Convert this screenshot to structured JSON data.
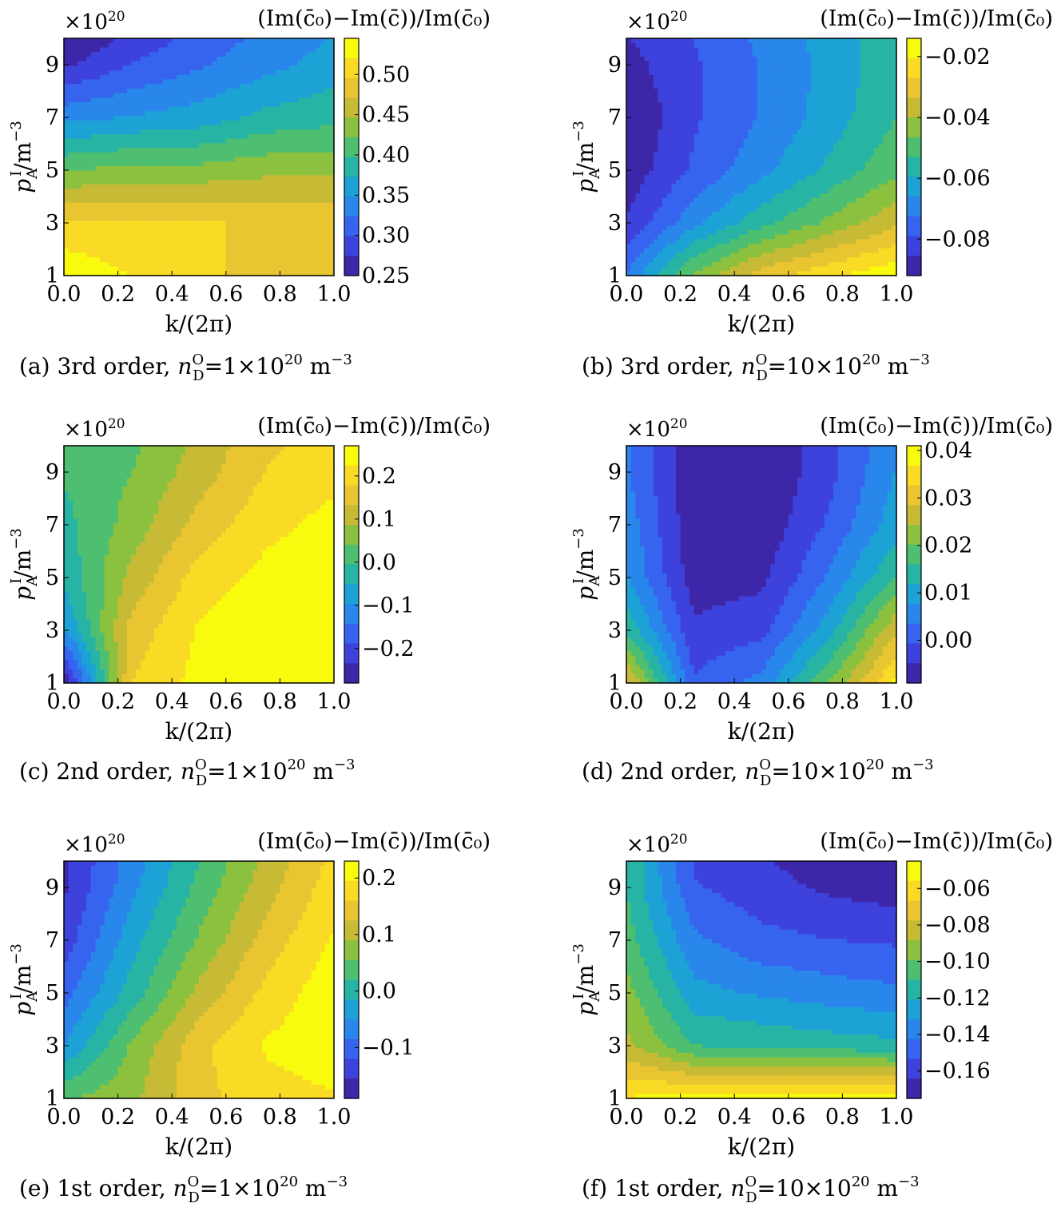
{
  "figure": {
    "colormap": [
      "#3e26a8",
      "#3e4cef",
      "#2c80f0",
      "#1aa5d2",
      "#2ebc8b",
      "#85c240",
      "#d6ba34",
      "#f9ce2e",
      "#f9fb0e"
    ],
    "contour_line_color": "#000000"
  },
  "chart_data": [
    {
      "type": "heatmap",
      "panel": "a",
      "title": "(Im(c̄₀)−Im(c̄))/Im(c̄₀)",
      "caption": {
        "prefix": "(a) 3rd order, ",
        "var": "n",
        "var_sup": "O",
        "var_sub": "D",
        "rest": "=1×10",
        "exp": "20",
        "unit": " m",
        "unit_exp": "−3"
      },
      "xlabel": "k/(2π)",
      "ylabel": {
        "main": "p",
        "sub": "A",
        "sup": "I",
        "rest": "/m",
        "rest_exp": "−3"
      },
      "y_multiplier": {
        "base": "×10",
        "exp": "20"
      },
      "x": [
        0.0,
        0.25,
        0.5,
        0.75,
        1.0
      ],
      "y": [
        1,
        3,
        5,
        7,
        9,
        10
      ],
      "z": [
        [
          0.54,
          0.52,
          0.5,
          0.49,
          0.48
        ],
        [
          0.5,
          0.5,
          0.5,
          0.49,
          0.49
        ],
        [
          0.42,
          0.43,
          0.43,
          0.44,
          0.44
        ],
        [
          0.34,
          0.35,
          0.36,
          0.38,
          0.39
        ],
        [
          0.27,
          0.3,
          0.32,
          0.34,
          0.36
        ],
        [
          0.25,
          0.28,
          0.31,
          0.33,
          0.35
        ]
      ],
      "clim": [
        0.25,
        0.545
      ],
      "xlim": [
        0.0,
        1.0
      ],
      "ylim": [
        1,
        10
      ],
      "xticks": [
        "0.0",
        "0.2",
        "0.4",
        "0.6",
        "0.8",
        "1.0"
      ],
      "yticks": [
        "1",
        "3",
        "5",
        "7",
        "9"
      ],
      "colorbar_ticks": [
        {
          "label": "0.50",
          "value": 0.5
        },
        {
          "label": "0.45",
          "value": 0.45
        },
        {
          "label": "0.40",
          "value": 0.4
        },
        {
          "label": "0.35",
          "value": 0.35
        },
        {
          "label": "0.30",
          "value": 0.3
        },
        {
          "label": "0.25",
          "value": 0.25
        }
      ],
      "levels": 12
    },
    {
      "type": "heatmap",
      "panel": "b",
      "title": "(Im(c̄₀)−Im(c̄))/Im(c̄₀)",
      "caption": {
        "prefix": "(b) 3rd order, ",
        "var": "n",
        "var_sup": "O",
        "var_sub": "D",
        "rest": "=10×10",
        "exp": "20",
        "unit": " m",
        "unit_exp": "−3"
      },
      "xlabel": "k/(2π)",
      "ylabel": {
        "main": "p",
        "sub": "A",
        "sup": "I",
        "rest": "/m",
        "rest_exp": "−3"
      },
      "y_multiplier": {
        "base": "×10",
        "exp": "20"
      },
      "x": [
        0.0,
        0.25,
        0.5,
        0.75,
        1.0
      ],
      "y": [
        1,
        3,
        5,
        7,
        9,
        10
      ],
      "z": [
        [
          -0.072,
          -0.045,
          -0.03,
          -0.022,
          -0.015
        ],
        [
          -0.085,
          -0.068,
          -0.055,
          -0.045,
          -0.035
        ],
        [
          -0.09,
          -0.078,
          -0.068,
          -0.058,
          -0.048
        ],
        [
          -0.092,
          -0.08,
          -0.072,
          -0.063,
          -0.053
        ],
        [
          -0.088,
          -0.08,
          -0.072,
          -0.064,
          -0.055
        ],
        [
          -0.086,
          -0.079,
          -0.071,
          -0.063,
          -0.055
        ]
      ],
      "clim": [
        -0.092,
        -0.014
      ],
      "xlim": [
        0.0,
        1.0
      ],
      "ylim": [
        1,
        10
      ],
      "xticks": [
        "0.0",
        "0.2",
        "0.4",
        "0.6",
        "0.8",
        "1.0"
      ],
      "yticks": [
        "1",
        "3",
        "5",
        "7",
        "9"
      ],
      "colorbar_ticks": [
        {
          "label": "−0.02",
          "value": -0.02
        },
        {
          "label": "−0.04",
          "value": -0.04
        },
        {
          "label": "−0.06",
          "value": -0.06
        },
        {
          "label": "−0.08",
          "value": -0.08
        }
      ],
      "levels": 12
    },
    {
      "type": "heatmap",
      "panel": "c",
      "title": "(Im(c̄₀)−Im(c̄))/Im(c̄₀)",
      "caption": {
        "prefix": "(c) 2nd order, ",
        "var": "n",
        "var_sup": "O",
        "var_sub": "D",
        "rest": "=1×10",
        "exp": "20",
        "unit": " m",
        "unit_exp": "−3"
      },
      "xlabel": "k/(2π)",
      "ylabel": {
        "main": "p",
        "sub": "A",
        "sup": "I",
        "rest": "/m",
        "rest_exp": "−3"
      },
      "y_multiplier": {
        "base": "×10",
        "exp": "20"
      },
      "x": [
        0.0,
        0.25,
        0.5,
        0.75,
        1.0
      ],
      "y": [
        1,
        3,
        5,
        7,
        9,
        10
      ],
      "z": [
        [
          -0.28,
          0.18,
          0.24,
          0.26,
          0.26
        ],
        [
          -0.1,
          0.15,
          0.23,
          0.26,
          0.26
        ],
        [
          -0.04,
          0.1,
          0.2,
          0.24,
          0.26
        ],
        [
          -0.02,
          0.06,
          0.15,
          0.21,
          0.24
        ],
        [
          0.0,
          0.04,
          0.11,
          0.18,
          0.21
        ],
        [
          0.0,
          0.03,
          0.1,
          0.17,
          0.2
        ]
      ],
      "clim": [
        -0.28,
        0.27
      ],
      "xlim": [
        0.0,
        1.0
      ],
      "ylim": [
        1,
        10
      ],
      "xticks": [
        "0.0",
        "0.2",
        "0.4",
        "0.6",
        "0.8",
        "1.0"
      ],
      "yticks": [
        "1",
        "3",
        "5",
        "7",
        "9"
      ],
      "colorbar_ticks": [
        {
          "label": "0.2",
          "value": 0.2
        },
        {
          "label": "0.1",
          "value": 0.1
        },
        {
          "label": "0.0",
          "value": 0.0
        },
        {
          "label": "−0.1",
          "value": -0.1
        },
        {
          "label": "−0.2",
          "value": -0.2
        }
      ],
      "levels": 12
    },
    {
      "type": "heatmap",
      "panel": "d",
      "title": "(Im(c̄₀)−Im(c̄))/Im(c̄₀)",
      "caption": {
        "prefix": "(d) 2nd order, ",
        "var": "n",
        "var_sup": "O",
        "var_sub": "D",
        "rest": "=10×10",
        "exp": "20",
        "unit": " m",
        "unit_exp": "−3"
      },
      "xlabel": "k/(2π)",
      "ylabel": {
        "main": "p",
        "sub": "A",
        "sup": "I",
        "rest": "/m",
        "rest_exp": "−3"
      },
      "y_multiplier": {
        "base": "×10",
        "exp": "20"
      },
      "x": [
        0.0,
        0.25,
        0.5,
        0.75,
        1.0
      ],
      "y": [
        1,
        3,
        5,
        7,
        9,
        10
      ],
      "z": [
        [
          0.03,
          0.0,
          0.005,
          0.02,
          0.038
        ],
        [
          0.015,
          -0.004,
          -0.002,
          0.01,
          0.028
        ],
        [
          0.008,
          -0.007,
          -0.006,
          0.004,
          0.016
        ],
        [
          0.006,
          -0.008,
          -0.008,
          0.0,
          0.01
        ],
        [
          0.004,
          -0.008,
          -0.009,
          -0.002,
          0.008
        ],
        [
          0.004,
          -0.008,
          -0.009,
          -0.002,
          0.007
        ]
      ],
      "clim": [
        -0.009,
        0.041
      ],
      "xlim": [
        0.0,
        1.0
      ],
      "ylim": [
        1,
        10
      ],
      "xticks": [
        "0.0",
        "0.2",
        "0.4",
        "0.6",
        "0.8",
        "1.0"
      ],
      "yticks": [
        "1",
        "3",
        "5",
        "7",
        "9"
      ],
      "colorbar_ticks": [
        {
          "label": "0.04",
          "value": 0.04
        },
        {
          "label": "0.03",
          "value": 0.03
        },
        {
          "label": "0.02",
          "value": 0.02
        },
        {
          "label": "0.01",
          "value": 0.01
        },
        {
          "label": "0.00",
          "value": 0.0
        }
      ],
      "levels": 12
    },
    {
      "type": "heatmap",
      "panel": "e",
      "title": "(Im(c̄₀)−Im(c̄))/Im(c̄₀)",
      "caption": {
        "prefix": "(e) 1st order, ",
        "var": "n",
        "var_sup": "O",
        "var_sub": "D",
        "rest": "=1×10",
        "exp": "20",
        "unit": " m",
        "unit_exp": "−3"
      },
      "xlabel": "k/(2π)",
      "ylabel": {
        "main": "p",
        "sub": "A",
        "sup": "I",
        "rest": "/m",
        "rest_exp": "−3"
      },
      "y_multiplier": {
        "base": "×10",
        "exp": "20"
      },
      "x": [
        0.0,
        0.25,
        0.5,
        0.75,
        1.0
      ],
      "y": [
        1,
        3,
        5,
        7,
        9,
        10
      ],
      "z": [
        [
          0.05,
          0.08,
          0.15,
          0.18,
          0.19
        ],
        [
          -0.05,
          0.06,
          0.15,
          0.2,
          0.22
        ],
        [
          -0.1,
          0.0,
          0.1,
          0.17,
          0.22
        ],
        [
          -0.14,
          -0.03,
          0.06,
          0.14,
          0.2
        ],
        [
          -0.16,
          -0.06,
          0.03,
          0.11,
          0.18
        ],
        [
          -0.16,
          -0.07,
          0.02,
          0.1,
          0.17
        ]
      ],
      "clim": [
        -0.19,
        0.23
      ],
      "xlim": [
        0.0,
        1.0
      ],
      "ylim": [
        1,
        10
      ],
      "xticks": [
        "0.0",
        "0.2",
        "0.4",
        "0.6",
        "0.8",
        "1.0"
      ],
      "yticks": [
        "1",
        "3",
        "5",
        "7",
        "9"
      ],
      "colorbar_ticks": [
        {
          "label": "0.2",
          "value": 0.2
        },
        {
          "label": "0.1",
          "value": 0.1
        },
        {
          "label": "0.0",
          "value": 0.0
        },
        {
          "label": "−0.1",
          "value": -0.1
        }
      ],
      "levels": 12
    },
    {
      "type": "heatmap",
      "panel": "f",
      "title": "(Im(c̄₀)−Im(c̄))/Im(c̄₀)",
      "caption": {
        "prefix": "(f) 1st order, ",
        "var": "n",
        "var_sup": "O",
        "var_sub": "D",
        "rest": "=10×10",
        "exp": "20",
        "unit": " m",
        "unit_exp": "−3"
      },
      "xlabel": "k/(2π)",
      "ylabel": {
        "main": "p",
        "sub": "A",
        "sup": "I",
        "rest": "/m",
        "rest_exp": "−3"
      },
      "y_multiplier": {
        "base": "×10",
        "exp": "20"
      },
      "x": [
        0.0,
        0.25,
        0.5,
        0.75,
        1.0
      ],
      "y": [
        1,
        3,
        5,
        7,
        9,
        10
      ],
      "z": [
        [
          -0.055,
          -0.05,
          -0.048,
          -0.048,
          -0.048
        ],
        [
          -0.085,
          -0.11,
          -0.112,
          -0.115,
          -0.118
        ],
        [
          -0.095,
          -0.128,
          -0.133,
          -0.137,
          -0.14
        ],
        [
          -0.105,
          -0.14,
          -0.15,
          -0.153,
          -0.155
        ],
        [
          -0.11,
          -0.152,
          -0.16,
          -0.166,
          -0.17
        ],
        [
          -0.11,
          -0.155,
          -0.163,
          -0.17,
          -0.175
        ]
      ],
      "clim": [
        -0.175,
        -0.045
      ],
      "xlim": [
        0.0,
        1.0
      ],
      "ylim": [
        1,
        10
      ],
      "xticks": [
        "0.0",
        "0.2",
        "0.4",
        "0.6",
        "0.8",
        "1.0"
      ],
      "yticks": [
        "1",
        "3",
        "5",
        "7",
        "9"
      ],
      "colorbar_ticks": [
        {
          "label": "−0.06",
          "value": -0.06
        },
        {
          "label": "−0.08",
          "value": -0.08
        },
        {
          "label": "−0.10",
          "value": -0.1
        },
        {
          "label": "−0.12",
          "value": -0.12
        },
        {
          "label": "−0.14",
          "value": -0.14
        },
        {
          "label": "−0.16",
          "value": -0.16
        }
      ],
      "levels": 12
    }
  ]
}
